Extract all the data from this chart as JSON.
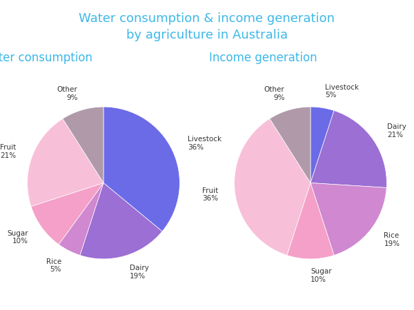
{
  "title": "Water consumption & income generation\nby agriculture in Australia",
  "title_color": "#3db8e8",
  "subtitle1": "Water consumption",
  "subtitle2": "Income generation",
  "subtitle_color": "#3db8e8",
  "background_color": "#ffffff",
  "water_labels": [
    "Livestock",
    "Dairy",
    "Rice",
    "Sugar",
    "Fruit",
    "Other"
  ],
  "water_values": [
    36,
    19,
    5,
    10,
    21,
    9
  ],
  "water_colors": [
    "#6B6BE8",
    "#9B6FD4",
    "#D088D0",
    "#F4A0C8",
    "#F8BFD8",
    "#B09AAA"
  ],
  "water_startangle": 90,
  "income_labels": [
    "Livestock",
    "Dairy",
    "Rice",
    "Sugar",
    "Fruit",
    "Other"
  ],
  "income_values": [
    5,
    21,
    19,
    10,
    36,
    9
  ],
  "income_colors": [
    "#6B6BE8",
    "#9B6FD4",
    "#D088D0",
    "#F4A0C8",
    "#F8BFD8",
    "#B09AAA"
  ],
  "income_startangle": 90,
  "label_fontsize": 7.5,
  "label_color": "#333333",
  "pct_color": "#333333",
  "title_fontsize": 13,
  "subtitle_fontsize": 12
}
